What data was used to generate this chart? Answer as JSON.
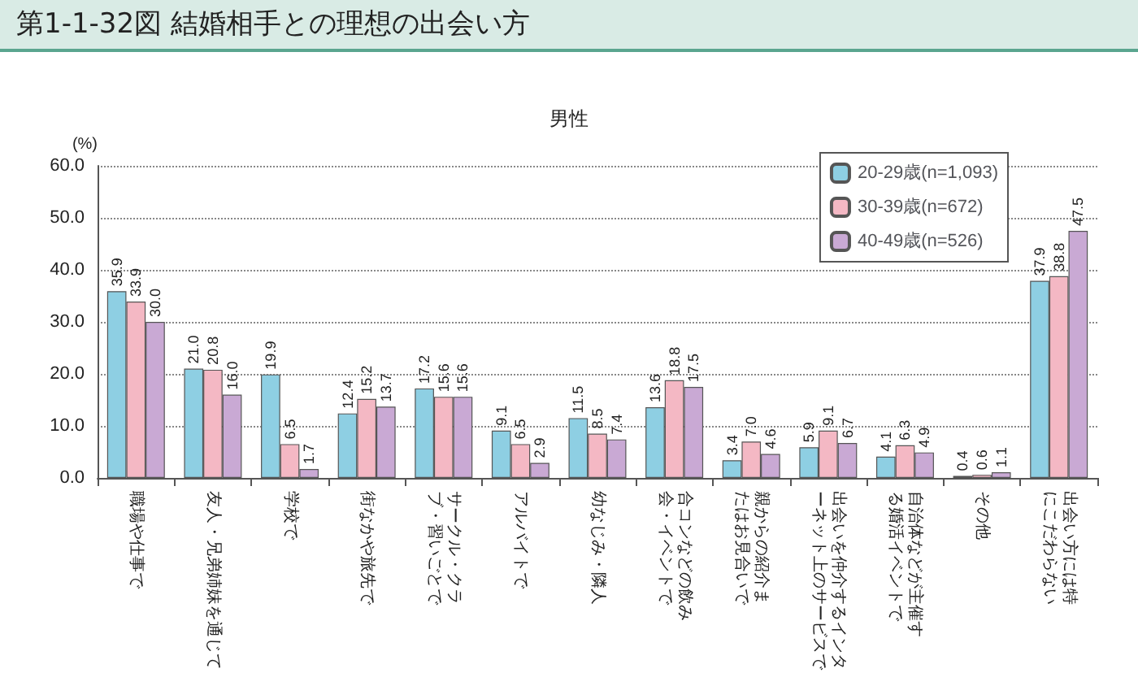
{
  "chart_data": {
    "type": "bar",
    "title": "第1-1-32図 結婚相手との理想の出会い方",
    "subtitle": "男性",
    "ylabel": "(%)",
    "categories": [
      "職場や仕事で",
      "友人・兄弟姉妹を通じて",
      "学校で",
      "街なかや旅先で",
      "サークル・クラブ・習いごとで",
      "アルバイトで",
      "幼なじみ・隣人",
      "合コンなどの飲み会・イベントで",
      "親からの紹介またはお見合いで",
      "出会いを仲介するインターネット上のサービスで",
      "自治体などが主催する婚活イベントで",
      "その他",
      "出会い方には特にこだわらない"
    ],
    "series": [
      {
        "name": "20-29歳(n=1,093)",
        "color": "#8ecfe3",
        "values": [
          35.9,
          21.0,
          19.9,
          12.4,
          17.2,
          9.1,
          11.5,
          13.6,
          3.4,
          5.9,
          4.1,
          0.4,
          37.9
        ],
        "value_labels": [
          "35.9",
          "21.0",
          "19.9",
          "12.4",
          "17.2",
          "9.1",
          "11.5",
          "13.6",
          "3.4",
          "5.9",
          "4.1",
          "0.4",
          "37.9"
        ]
      },
      {
        "name": "30-39歳(n=672)",
        "color": "#f4b8c4",
        "values": [
          33.9,
          20.8,
          6.5,
          15.2,
          15.6,
          6.5,
          8.5,
          18.8,
          7.0,
          9.1,
          6.3,
          0.6,
          38.8
        ],
        "value_labels": [
          "33.9",
          "20.8",
          "6.5",
          "15.2",
          "15.6",
          "6.5",
          "8.5",
          "18.8",
          "7.0",
          "9.1",
          "6.3",
          "0.6",
          "38.8"
        ]
      },
      {
        "name": "40-49歳(n=526)",
        "color": "#c9a9d4",
        "values": [
          30.0,
          16.0,
          1.7,
          13.7,
          15.6,
          2.9,
          7.4,
          17.5,
          4.6,
          6.7,
          4.9,
          1.1,
          47.5
        ],
        "value_labels": [
          "30.0",
          "16.0",
          "1.7",
          "13.7",
          "15.6",
          "2.9",
          "7.4",
          "17.5",
          "4.6",
          "6.7",
          "4.9",
          "1.1",
          "47.5"
        ]
      }
    ],
    "ylim": [
      0,
      60
    ],
    "yticks": [
      {
        "value": 0,
        "label": "0.0"
      },
      {
        "value": 10,
        "label": "10.0"
      },
      {
        "value": 20,
        "label": "20.0"
      },
      {
        "value": 30,
        "label": "30.0"
      },
      {
        "value": 40,
        "label": "40.0"
      },
      {
        "value": 50,
        "label": "50.0"
      },
      {
        "value": 60,
        "label": "60.0"
      }
    ],
    "grid": "y",
    "legend": "top right"
  }
}
